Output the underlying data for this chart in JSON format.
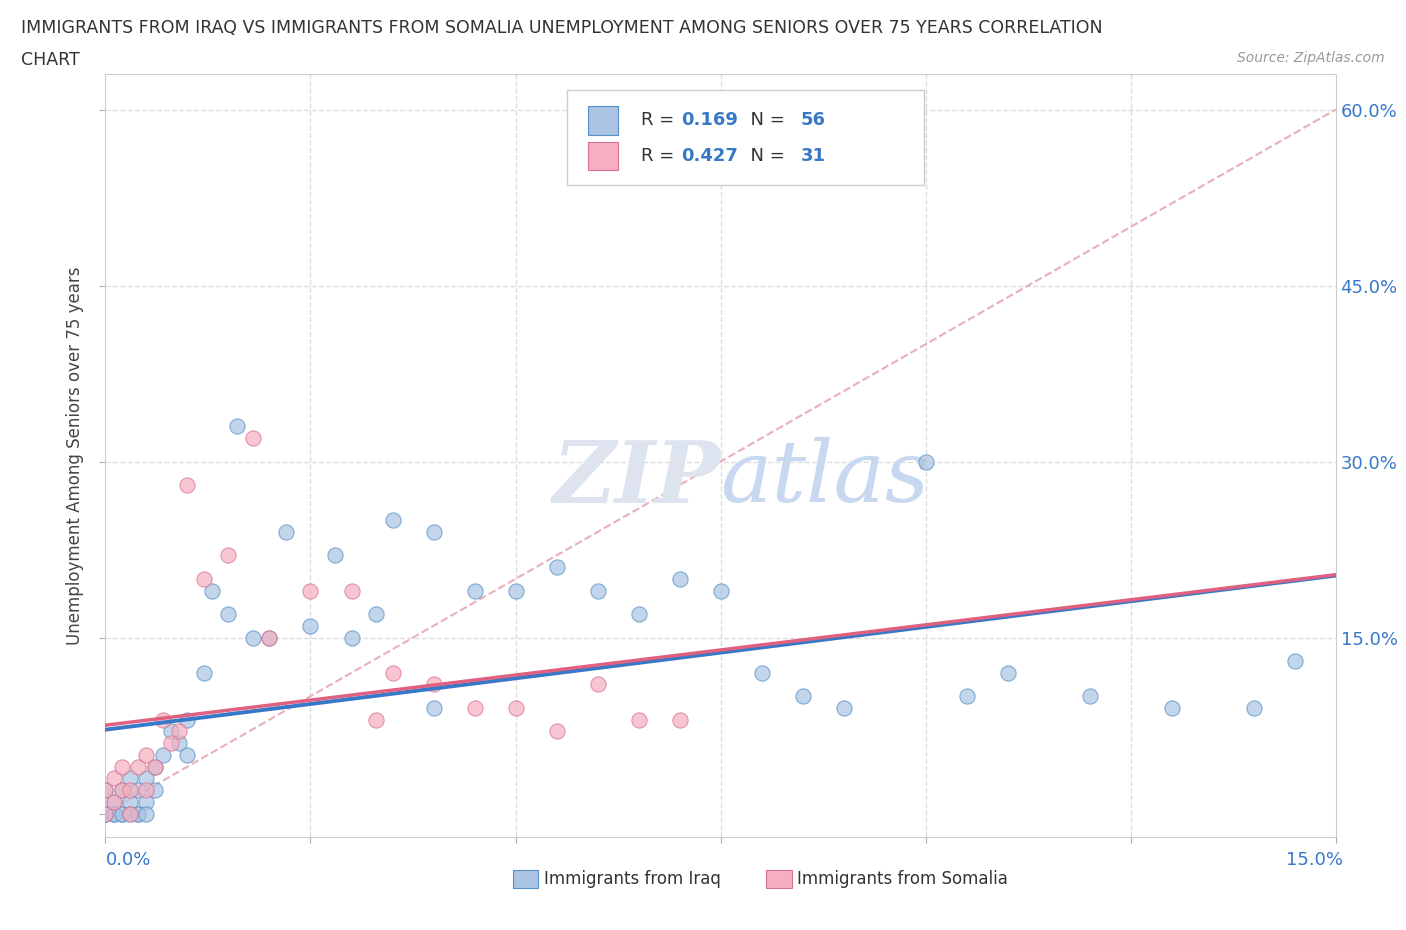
{
  "title_line1": "IMMIGRANTS FROM IRAQ VS IMMIGRANTS FROM SOMALIA UNEMPLOYMENT AMONG SENIORS OVER 75 YEARS CORRELATION",
  "title_line2": "CHART",
  "source": "Source: ZipAtlas.com",
  "ylabel": "Unemployment Among Seniors over 75 years",
  "xmin": 0.0,
  "xmax": 0.15,
  "ymin": -0.02,
  "ymax": 0.63,
  "iraq_R": 0.169,
  "iraq_N": 56,
  "somalia_R": 0.427,
  "somalia_N": 31,
  "iraq_color": "#aac4e2",
  "somalia_color": "#f5afc0",
  "iraq_line_color": "#3878c8",
  "somalia_line_color": "#e06080",
  "ref_line_color": "#e8b0b8",
  "watermark_color": "#dde4f0",
  "grid_color": "#dddddd",
  "background_color": "#ffffff",
  "iraq_x": [
    0.0,
    0.0,
    0.001,
    0.001,
    0.002,
    0.002,
    0.003,
    0.003,
    0.004,
    0.004,
    0.005,
    0.005,
    0.006,
    0.006,
    0.007,
    0.008,
    0.009,
    0.01,
    0.01,
    0.012,
    0.013,
    0.015,
    0.016,
    0.018,
    0.02,
    0.022,
    0.025,
    0.028,
    0.03,
    0.033,
    0.035,
    0.04,
    0.04,
    0.045,
    0.05,
    0.055,
    0.06,
    0.065,
    0.07,
    0.075,
    0.08,
    0.085,
    0.09,
    0.1,
    0.105,
    0.11,
    0.12,
    0.13,
    0.14,
    0.145,
    0.0,
    0.001,
    0.002,
    0.003,
    0.004,
    0.005
  ],
  "iraq_y": [
    0.0,
    0.02,
    0.0,
    0.01,
    0.02,
    0.0,
    0.01,
    0.03,
    0.0,
    0.02,
    0.01,
    0.03,
    0.02,
    0.04,
    0.05,
    0.07,
    0.06,
    0.05,
    0.08,
    0.12,
    0.19,
    0.17,
    0.33,
    0.15,
    0.15,
    0.24,
    0.16,
    0.22,
    0.15,
    0.17,
    0.25,
    0.24,
    0.09,
    0.19,
    0.19,
    0.21,
    0.19,
    0.17,
    0.2,
    0.19,
    0.12,
    0.1,
    0.09,
    0.3,
    0.1,
    0.12,
    0.1,
    0.09,
    0.09,
    0.13,
    0.0,
    0.0,
    0.0,
    0.0,
    0.0,
    0.0
  ],
  "somalia_x": [
    0.0,
    0.0,
    0.001,
    0.001,
    0.002,
    0.002,
    0.003,
    0.003,
    0.004,
    0.005,
    0.005,
    0.006,
    0.007,
    0.008,
    0.009,
    0.01,
    0.012,
    0.015,
    0.018,
    0.02,
    0.025,
    0.03,
    0.033,
    0.035,
    0.04,
    0.045,
    0.05,
    0.055,
    0.06,
    0.065,
    0.07
  ],
  "somalia_y": [
    0.0,
    0.02,
    0.01,
    0.03,
    0.02,
    0.04,
    0.0,
    0.02,
    0.04,
    0.02,
    0.05,
    0.04,
    0.08,
    0.06,
    0.07,
    0.28,
    0.2,
    0.22,
    0.32,
    0.15,
    0.19,
    0.19,
    0.08,
    0.12,
    0.11,
    0.09,
    0.09,
    0.07,
    0.11,
    0.08,
    0.08
  ]
}
